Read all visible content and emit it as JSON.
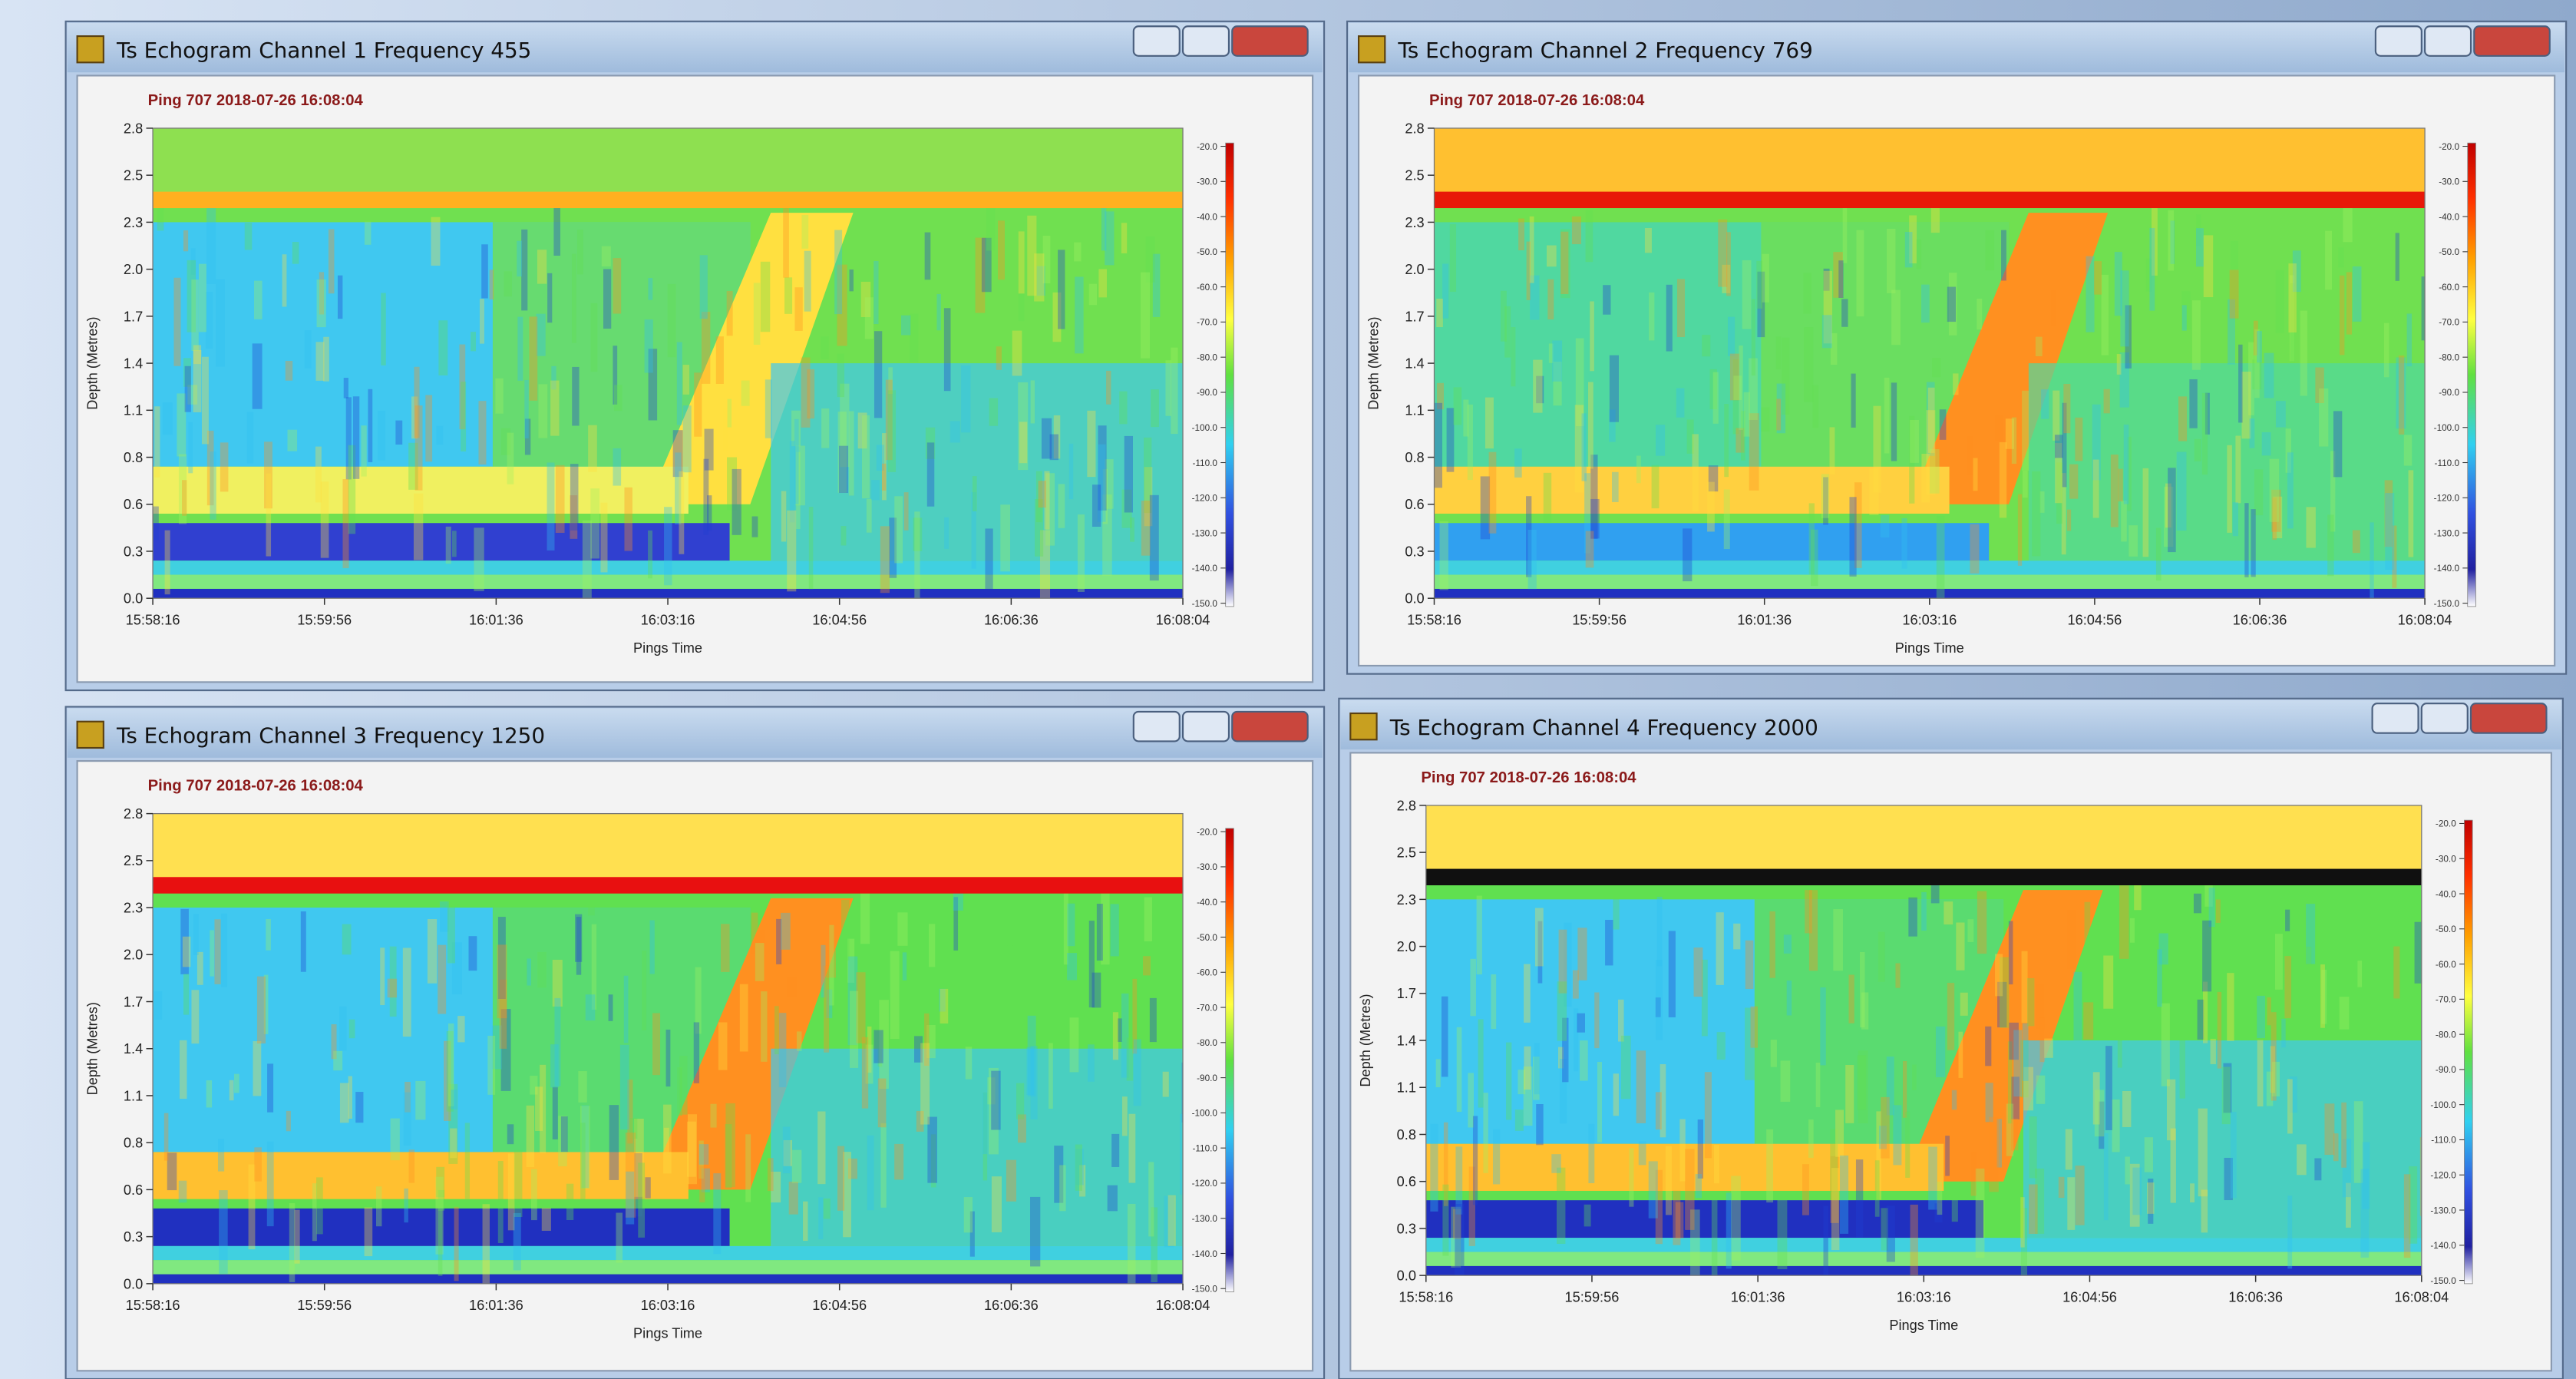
{
  "windows": [
    {
      "title": "Ts Echogram Channel 1 Frequency 455",
      "ping": "Ping 707 2018-07-26 16:08:04",
      "y_label": "Depth (Metres)",
      "x_label": "Pings Time",
      "y_ticks": [
        "2.8",
        "2.5",
        "2.3",
        "2.0",
        "1.7",
        "1.4",
        "1.1",
        "0.8",
        "0.6",
        "0.3",
        "0.0"
      ],
      "x_ticks": [
        "15:58:16",
        "15:59:56",
        "16:01:36",
        "16:03:16",
        "16:04:56",
        "16:06:36",
        "16:08:04"
      ],
      "colorbar_ticks": [
        "-20.0",
        "-30.0",
        "-40.0",
        "-50.0",
        "-60.0",
        "-70.0",
        "-80.0",
        "-90.0",
        "-100.0",
        "-110.0",
        "-120.0",
        "-130.0",
        "-140.0",
        "-150.0"
      ]
    },
    {
      "title": "Ts Echogram Channel 2 Frequency 769",
      "ping": "Ping 707 2018-07-26 16:08:04",
      "y_label": "Depth (Metres)",
      "x_label": "Pings Time",
      "y_ticks": [
        "2.8",
        "2.5",
        "2.3",
        "2.0",
        "1.7",
        "1.4",
        "1.1",
        "0.8",
        "0.6",
        "0.3",
        "0.0"
      ],
      "x_ticks": [
        "15:58:16",
        "15:59:56",
        "16:01:36",
        "16:03:16",
        "16:04:56",
        "16:06:36",
        "16:08:04"
      ],
      "colorbar_ticks": [
        "-20.0",
        "-30.0",
        "-40.0",
        "-50.0",
        "-60.0",
        "-70.0",
        "-80.0",
        "-90.0",
        "-100.0",
        "-110.0",
        "-120.0",
        "-130.0",
        "-140.0",
        "-150.0"
      ]
    },
    {
      "title": "Ts Echogram Channel 3 Frequency 1250",
      "ping": "Ping 707 2018-07-26 16:08:04",
      "y_label": "Depth (Metres)",
      "x_label": "Pings Time",
      "y_ticks": [
        "2.8",
        "2.5",
        "2.3",
        "2.0",
        "1.7",
        "1.4",
        "1.1",
        "0.8",
        "0.6",
        "0.3",
        "0.0"
      ],
      "x_ticks": [
        "15:58:16",
        "15:59:56",
        "16:01:36",
        "16:03:16",
        "16:04:56",
        "16:06:36",
        "16:08:04"
      ],
      "colorbar_ticks": [
        "-20.0",
        "-30.0",
        "-40.0",
        "-50.0",
        "-60.0",
        "-70.0",
        "-80.0",
        "-90.0",
        "-100.0",
        "-110.0",
        "-120.0",
        "-130.0",
        "-140.0",
        "-150.0"
      ]
    },
    {
      "title": "Ts Echogram Channel 4 Frequency 2000",
      "ping": "Ping 707 2018-07-26 16:08:04",
      "y_label": "Depth (Metres)",
      "x_label": "Pings Time",
      "y_ticks": [
        "2.8",
        "2.5",
        "2.3",
        "2.0",
        "1.7",
        "1.4",
        "1.1",
        "0.8",
        "0.6",
        "0.3",
        "0.0"
      ],
      "x_ticks": [
        "15:58:16",
        "15:59:56",
        "16:01:36",
        "16:03:16",
        "16:04:56",
        "16:06:36",
        "16:08:04"
      ],
      "colorbar_ticks": [
        "-20.0",
        "-30.0",
        "-40.0",
        "-50.0",
        "-60.0",
        "-70.0",
        "-80.0",
        "-90.0",
        "-100.0",
        "-110.0",
        "-120.0",
        "-130.0",
        "-140.0",
        "-150.0"
      ]
    }
  ]
}
